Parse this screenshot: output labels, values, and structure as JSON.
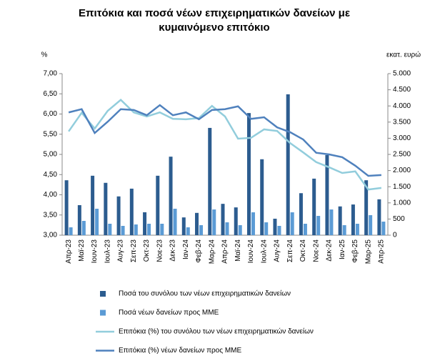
{
  "chart_data": {
    "type": "bar_line",
    "title": [
      "Επιτόκια και ποσά νέων επιχειρηματικών δανείων με",
      "κυμαινόμενο επιτόκιο"
    ],
    "y_label": "%",
    "y2_label": "εκατ. ευρώ",
    "categories": [
      "Απρ-23",
      "Μαϊ-23",
      "Ιουν-23",
      "Ιουλ-23",
      "Αυγ-23",
      "Σεπ-23",
      "Οκτ-23",
      "Νοε-23",
      "Δεκ-23",
      "Ιαν-24",
      "Φεβ-24",
      "Μαρ-24",
      "Απρ-24",
      "Μαϊ-24",
      "Ιουν-24",
      "Ιουλ-24",
      "Αυγ-24",
      "Σεπ-24",
      "Οκτ-24",
      "Νοε-24",
      "Δεκ-24",
      "Ιαν-25",
      "Φεβ-25",
      "Μαρ-25",
      "Απρ-25"
    ],
    "series": [
      {
        "name": "Ποσά του συνόλου των νέων επιχειρηματικών δανείων",
        "type": "bar",
        "axis": "y2",
        "color": "#2c5c8f",
        "values": [
          1700,
          930,
          1840,
          1620,
          1200,
          1440,
          710,
          1840,
          2430,
          550,
          690,
          3320,
          970,
          860,
          3780,
          2350,
          510,
          4360,
          1300,
          1750,
          2480,
          890,
          950,
          1700,
          1110
        ]
      },
      {
        "name": "Ποσά νέων δανείων προς ΜΜΕ",
        "type": "bar",
        "axis": "y2",
        "color": "#5b9bd5",
        "values": [
          243,
          442,
          819,
          354,
          288,
          332,
          354,
          354,
          819,
          243,
          310,
          796,
          398,
          310,
          708,
          398,
          288,
          708,
          354,
          597,
          796,
          310,
          354,
          620,
          420
        ]
      },
      {
        "name": "Επιτόκια (%) του συνόλου των νέων επιχειρηματικών δανείων",
        "type": "line",
        "color": "#92cddc",
        "values": [
          5.57,
          6.03,
          5.64,
          6.08,
          6.35,
          6.04,
          5.94,
          6.04,
          5.88,
          5.87,
          5.9,
          6.2,
          5.94,
          5.39,
          5.41,
          5.62,
          5.58,
          5.28,
          5.05,
          4.81,
          4.68,
          4.54,
          4.58,
          4.13,
          4.17
        ]
      },
      {
        "name": "Επιτόκια (%) νέων δανείων προς ΜΜΕ",
        "type": "line",
        "color": "#4f81bd",
        "values": [
          6.04,
          6.12,
          5.53,
          5.81,
          6.12,
          6.1,
          5.97,
          6.22,
          5.97,
          6.04,
          5.87,
          6.1,
          6.12,
          6.19,
          5.88,
          5.92,
          5.67,
          5.55,
          5.37,
          5.04,
          5.0,
          4.93,
          4.72,
          4.47,
          4.49
        ]
      }
    ],
    "ylim": [
      3,
      7
    ],
    "yticks": [
      {
        "value": 3,
        "label": "3,00"
      },
      {
        "value": 3.5,
        "label": "3,50"
      },
      {
        "value": 4,
        "label": "4,00"
      },
      {
        "value": 4.5,
        "label": "4,50"
      },
      {
        "value": 5,
        "label": "5,00"
      },
      {
        "value": 5.5,
        "label": "5,50"
      },
      {
        "value": 6,
        "label": "6,00"
      },
      {
        "value": 6.5,
        "label": "6,50"
      },
      {
        "value": 7,
        "label": "7,00"
      }
    ],
    "y2lim": [
      0,
      5000
    ],
    "y2ticks": [
      0,
      500,
      {
        "value": 1000,
        "label": "1.000"
      },
      {
        "value": 1500,
        "label": "1.500"
      },
      {
        "value": 2000,
        "label": "2.000"
      },
      {
        "value": 2500,
        "label": "2.500"
      },
      {
        "value": 3000,
        "label": "3.000"
      },
      {
        "value": 3500,
        "label": "3.500"
      },
      {
        "value": 4000,
        "label": "4.000"
      },
      {
        "value": 4500,
        "label": "4.500"
      },
      {
        "value": 5000,
        "label": "5.000"
      }
    ],
    "grid": false,
    "legend": "bottom"
  }
}
